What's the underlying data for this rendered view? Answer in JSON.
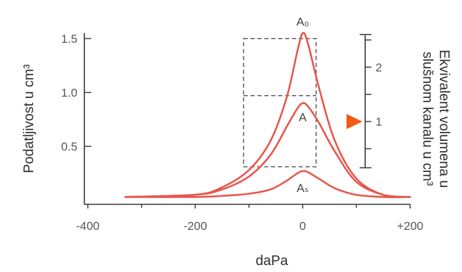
{
  "chart_data": {
    "type": "line",
    "xlabel": "daPa",
    "ylabel": "Podatljivost u cm³",
    "y2label_lines": [
      "Ekvivalent volumena u",
      "slušnom kanalu u cm³"
    ],
    "xlim": [
      -400,
      200
    ],
    "ylim": [
      0,
      1.55
    ],
    "x_ticks": [
      {
        "value": -400,
        "label": "-400"
      },
      {
        "value": -200,
        "label": "-200"
      },
      {
        "value": 0,
        "label": "0"
      },
      {
        "value": 200,
        "label": "+200"
      }
    ],
    "x_minor_ticks": [
      -300,
      -100,
      100
    ],
    "y_ticks": [
      {
        "value": 0.5,
        "label": "0.5"
      },
      {
        "value": 1.0,
        "label": "1.0"
      },
      {
        "value": 1.5,
        "label": "1.5"
      }
    ],
    "y2_ticks": [
      {
        "value": 1,
        "label": "1"
      },
      {
        "value": 2,
        "label": "2"
      }
    ],
    "y2_minor_ticks": [
      0.5,
      1.5,
      2.5
    ],
    "y2_range": [
      0.15,
      2.6
    ],
    "marker_value": 1,
    "series": [
      {
        "name": "A₀",
        "peak": 1.55,
        "x": [
          -330,
          -200,
          -150,
          -100,
          -60,
          -30,
          -10,
          0,
          10,
          30,
          60,
          100,
          150,
          200
        ],
        "y": [
          0.03,
          0.05,
          0.12,
          0.28,
          0.55,
          0.95,
          1.38,
          1.55,
          1.45,
          1.05,
          0.55,
          0.2,
          0.05,
          0.03
        ]
      },
      {
        "name": "A",
        "peak": 0.9,
        "x": [
          -330,
          -200,
          -150,
          -100,
          -60,
          -30,
          -10,
          0,
          10,
          30,
          60,
          100,
          150,
          200
        ],
        "y": [
          0.03,
          0.05,
          0.1,
          0.22,
          0.42,
          0.68,
          0.85,
          0.9,
          0.87,
          0.72,
          0.45,
          0.17,
          0.05,
          0.03
        ]
      },
      {
        "name": "Aₛ",
        "peak": 0.27,
        "x": [
          -330,
          -200,
          -150,
          -100,
          -60,
          -30,
          -10,
          0,
          10,
          30,
          60,
          100,
          150,
          200
        ],
        "y": [
          0.03,
          0.03,
          0.04,
          0.06,
          0.1,
          0.18,
          0.25,
          0.27,
          0.26,
          0.2,
          0.11,
          0.05,
          0.03,
          0.03
        ]
      }
    ],
    "series_color": "#e8544a",
    "marker_color": "#f05a14",
    "dashed_box": {
      "x_range": [
        -110,
        25
      ],
      "y_range": [
        0.31,
        1.5
      ],
      "y_divider": 0.97
    },
    "grid": false,
    "legend": "none"
  }
}
